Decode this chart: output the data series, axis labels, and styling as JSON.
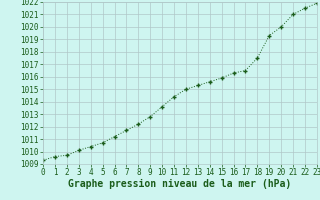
{
  "x": [
    0,
    1,
    2,
    3,
    4,
    5,
    6,
    7,
    8,
    9,
    10,
    11,
    12,
    13,
    14,
    15,
    16,
    17,
    18,
    19,
    20,
    21,
    22,
    23
  ],
  "y": [
    1009.3,
    1009.6,
    1009.7,
    1010.1,
    1010.4,
    1010.7,
    1011.2,
    1011.7,
    1012.2,
    1012.8,
    1013.6,
    1014.4,
    1015.0,
    1015.3,
    1015.6,
    1015.9,
    1016.3,
    1016.5,
    1017.5,
    1019.3,
    1020.0,
    1021.0,
    1021.5,
    1021.9
  ],
  "xlim": [
    0,
    23
  ],
  "ylim": [
    1009,
    1022
  ],
  "yticks": [
    1009,
    1010,
    1011,
    1012,
    1013,
    1014,
    1015,
    1016,
    1017,
    1018,
    1019,
    1020,
    1021,
    1022
  ],
  "xticks": [
    0,
    1,
    2,
    3,
    4,
    5,
    6,
    7,
    8,
    9,
    10,
    11,
    12,
    13,
    14,
    15,
    16,
    17,
    18,
    19,
    20,
    21,
    22,
    23
  ],
  "xlabel": "Graphe pression niveau de la mer (hPa)",
  "line_color": "#1a5c1a",
  "marker_color": "#1a5c1a",
  "bg_color": "#cef5f0",
  "grid_color": "#b0c8c8",
  "text_color": "#1a5c1a",
  "xlabel_color": "#1a5c1a",
  "tick_fontsize": 5.5,
  "xlabel_fontsize": 7.0
}
